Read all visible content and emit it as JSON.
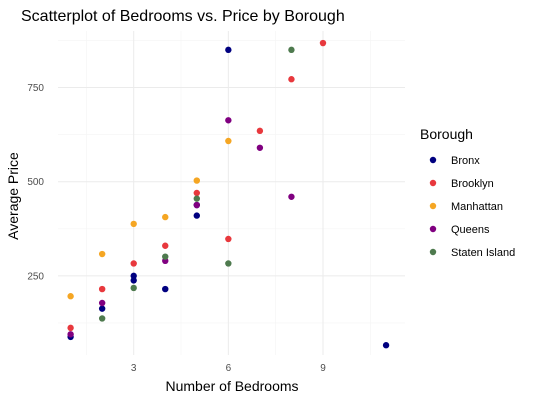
{
  "chart_data": {
    "type": "scatter",
    "title": "Scatterplot of Bedrooms vs. Price by Borough",
    "xlabel": "Number of Bedrooms",
    "ylabel": "Average Price",
    "xlim": [
      0.6,
      11.6
    ],
    "ylim": [
      40,
      900
    ],
    "x_ticks": [
      3,
      6,
      9
    ],
    "x_minor_ticks": [
      1.5,
      4.5,
      7.5,
      10.5
    ],
    "y_ticks": [
      250,
      500,
      750
    ],
    "y_minor_ticks": [
      125,
      375,
      625,
      875
    ],
    "grid": true,
    "legend": {
      "title": "Borough",
      "position": "right"
    },
    "series": [
      {
        "name": "Bronx",
        "color": "#000080",
        "points": [
          [
            1,
            88
          ],
          [
            2,
            163
          ],
          [
            3,
            250
          ],
          [
            3,
            238
          ],
          [
            4,
            215
          ],
          [
            5,
            410
          ],
          [
            5,
            438
          ],
          [
            6,
            850
          ],
          [
            11,
            66
          ]
        ]
      },
      {
        "name": "Brooklyn",
        "color": "#e8383d",
        "points": [
          [
            1,
            112
          ],
          [
            2,
            215
          ],
          [
            3,
            283
          ],
          [
            4,
            330
          ],
          [
            5,
            470
          ],
          [
            6,
            348
          ],
          [
            7,
            635
          ],
          [
            8,
            772
          ],
          [
            9,
            868
          ]
        ]
      },
      {
        "name": "Manhattan",
        "color": "#f5a623",
        "points": [
          [
            1,
            196
          ],
          [
            2,
            308
          ],
          [
            3,
            388
          ],
          [
            4,
            406
          ],
          [
            5,
            503
          ],
          [
            6,
            608
          ]
        ]
      },
      {
        "name": "Queens",
        "color": "#800080",
        "points": [
          [
            1,
            95
          ],
          [
            2,
            178
          ],
          [
            4,
            290
          ],
          [
            5,
            438
          ],
          [
            6,
            663
          ],
          [
            7,
            590
          ],
          [
            8,
            460
          ]
        ]
      },
      {
        "name": "Staten Island",
        "color": "#4e7a4e",
        "points": [
          [
            2,
            137
          ],
          [
            3,
            218
          ],
          [
            4,
            301
          ],
          [
            5,
            455
          ],
          [
            6,
            283
          ],
          [
            8,
            850
          ]
        ]
      }
    ]
  }
}
